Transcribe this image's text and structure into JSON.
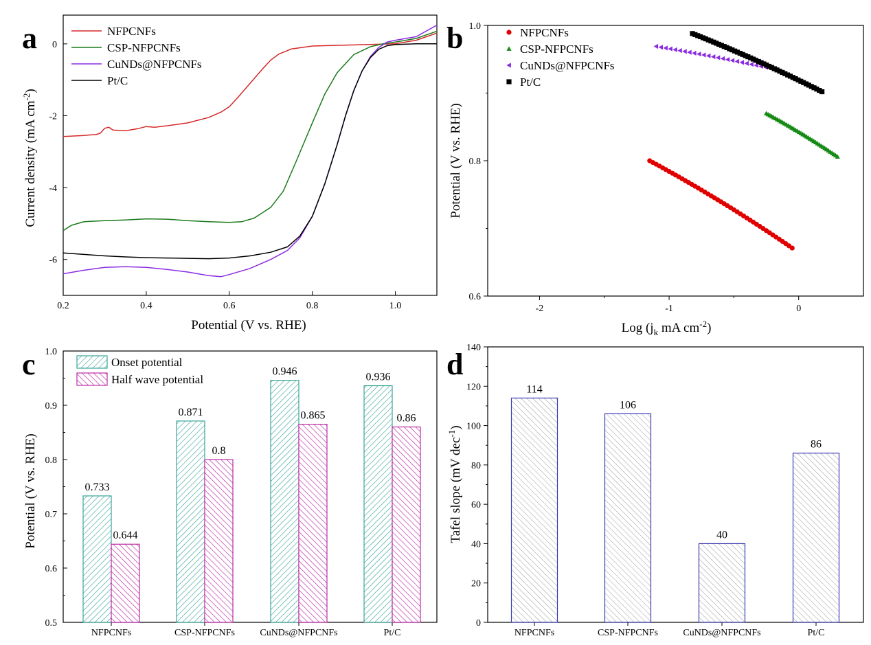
{
  "chart_data": [
    {
      "panel": "a",
      "type": "line",
      "xlabel": "Potential (V vs. RHE)",
      "ylabel_main": "Current density (mA cm",
      "ylabel_sup": "-2",
      "ylabel_end": ")",
      "xlim": [
        0.2,
        1.1
      ],
      "ylim": [
        -7,
        0.8
      ],
      "xticks": [
        0.2,
        0.4,
        0.6,
        0.8,
        1.0
      ],
      "xtick_labels": [
        "0.2",
        "0.4",
        "0.6",
        "0.8",
        "1.0"
      ],
      "yticks": [
        0,
        -2,
        -4,
        -6
      ],
      "ytick_labels": [
        "0",
        "-2",
        "-4",
        "-6"
      ],
      "legend": [
        "NFPCNFs",
        "CSP-NFPCNFs",
        "CuNDs@NFPCNFs",
        "Pt/C"
      ],
      "series": [
        {
          "name": "NFPCNFs",
          "color": "#d62728",
          "x": [
            0.2,
            0.25,
            0.28,
            0.29,
            0.3,
            0.31,
            0.32,
            0.35,
            0.38,
            0.4,
            0.42,
            0.45,
            0.5,
            0.55,
            0.58,
            0.6,
            0.62,
            0.65,
            0.68,
            0.7,
            0.72,
            0.75,
            0.8,
            0.9,
            1.0,
            1.05,
            1.1
          ],
          "y": [
            -2.58,
            -2.55,
            -2.52,
            -2.48,
            -2.35,
            -2.32,
            -2.4,
            -2.42,
            -2.36,
            -2.3,
            -2.32,
            -2.28,
            -2.2,
            -2.05,
            -1.9,
            -1.75,
            -1.5,
            -1.1,
            -0.7,
            -0.45,
            -0.28,
            -0.14,
            -0.06,
            -0.03,
            0.0,
            0.1,
            0.3
          ]
        },
        {
          "name": "CSP-NFPCNFs",
          "color": "#1a7a1a",
          "x": [
            0.2,
            0.22,
            0.25,
            0.3,
            0.35,
            0.4,
            0.45,
            0.5,
            0.55,
            0.6,
            0.63,
            0.66,
            0.7,
            0.73,
            0.76,
            0.8,
            0.83,
            0.86,
            0.9,
            0.94,
            0.97,
            1.0,
            1.05,
            1.1
          ],
          "y": [
            -5.2,
            -5.05,
            -4.95,
            -4.92,
            -4.9,
            -4.87,
            -4.88,
            -4.92,
            -4.95,
            -4.97,
            -4.95,
            -4.85,
            -4.55,
            -4.1,
            -3.3,
            -2.2,
            -1.4,
            -0.8,
            -0.3,
            -0.08,
            0.0,
            0.05,
            0.15,
            0.35
          ]
        },
        {
          "name": "CuNDs@NFPCNFs",
          "color": "#8a2be2",
          "x": [
            0.2,
            0.25,
            0.3,
            0.35,
            0.4,
            0.45,
            0.5,
            0.55,
            0.58,
            0.6,
            0.65,
            0.7,
            0.74,
            0.77,
            0.8,
            0.83,
            0.86,
            0.88,
            0.9,
            0.92,
            0.94,
            0.96,
            0.98,
            1.0,
            1.05,
            1.1
          ],
          "y": [
            -6.4,
            -6.3,
            -6.22,
            -6.2,
            -6.22,
            -6.28,
            -6.35,
            -6.45,
            -6.48,
            -6.42,
            -6.25,
            -6.0,
            -5.75,
            -5.4,
            -4.8,
            -3.9,
            -2.8,
            -2.0,
            -1.3,
            -0.75,
            -0.35,
            -0.1,
            0.05,
            0.1,
            0.2,
            0.52
          ]
        },
        {
          "name": "Pt/C",
          "color": "#000000",
          "x": [
            0.2,
            0.25,
            0.3,
            0.35,
            0.4,
            0.45,
            0.5,
            0.55,
            0.6,
            0.65,
            0.7,
            0.74,
            0.77,
            0.8,
            0.83,
            0.86,
            0.88,
            0.9,
            0.92,
            0.94,
            0.96,
            0.98,
            1.0,
            1.05,
            1.1
          ],
          "y": [
            -5.82,
            -5.86,
            -5.9,
            -5.93,
            -5.95,
            -5.96,
            -5.97,
            -5.98,
            -5.96,
            -5.9,
            -5.8,
            -5.65,
            -5.35,
            -4.8,
            -3.9,
            -2.8,
            -2.0,
            -1.3,
            -0.75,
            -0.38,
            -0.15,
            -0.05,
            -0.02,
            0.0,
            0.0
          ]
        }
      ]
    },
    {
      "panel": "b",
      "type": "scatter",
      "xlabel_main": "Log (j",
      "xlabel_sub": "k",
      "xlabel_mid": " mA cm",
      "xlabel_sup": "-2",
      "xlabel_end": ")",
      "ylabel": "Potential (V vs. RHE)",
      "xlim": [
        -2.4,
        0.5
      ],
      "ylim": [
        0.6,
        1.0
      ],
      "xticks": [
        -2,
        -1,
        0
      ],
      "xtick_labels": [
        "-2",
        "-1",
        "0"
      ],
      "yticks": [
        0.6,
        0.8,
        1.0
      ],
      "ytick_labels": [
        "0.6",
        "0.8",
        "1.0"
      ],
      "legend": [
        "NFPCNFs",
        "CSP-NFPCNFs",
        "CuNDs@NFPCNFs",
        "Pt/C"
      ],
      "series": [
        {
          "name": "NFPCNFs",
          "color": "#e00000",
          "marker": "circle",
          "x_start": -1.15,
          "x_end": -0.05,
          "y_start": 0.8,
          "y_end": 0.671,
          "n": 45
        },
        {
          "name": "CSP-NFPCNFs",
          "color": "#158a15",
          "marker": "triangle-up",
          "x_start": -0.25,
          "x_end": 0.3,
          "y_start": 0.87,
          "y_end": 0.806,
          "n": 40
        },
        {
          "name": "CuNDs@NFPCNFs",
          "color": "#8a2be2",
          "marker": "triangle-left",
          "x_start": -1.1,
          "x_end": -0.18,
          "y_start": 0.969,
          "y_end": 0.935,
          "n": 26
        },
        {
          "name": "Pt/C",
          "color": "#000000",
          "marker": "square",
          "x_start": -0.82,
          "x_end": 0.18,
          "y_start": 0.988,
          "y_end": 0.902,
          "n": 50
        }
      ]
    },
    {
      "panel": "c",
      "type": "bar",
      "ylabel": "Potential (V vs. RHE)",
      "ylim": [
        0.5,
        1.0
      ],
      "yticks": [
        0.5,
        0.6,
        0.7,
        0.8,
        0.9,
        1.0
      ],
      "ytick_labels": [
        "0.5",
        "0.6",
        "0.7",
        "0.8",
        "0.9",
        "1.0"
      ],
      "categories": [
        "NFPCNFs",
        "CSP-NFPCNFs",
        "CuNDs@NFPCNFs",
        "Pt/C"
      ],
      "series": [
        {
          "name": "Onset potential",
          "color": "#2a9d8f",
          "values": [
            0.733,
            0.871,
            0.946,
            0.936
          ],
          "labels": [
            "0.733",
            "0.871",
            "0.946",
            "0.936"
          ]
        },
        {
          "name": "Half wave potential",
          "color": "#b5179e",
          "values": [
            0.644,
            0.8,
            0.865,
            0.86
          ],
          "labels": [
            "0.644",
            "0.8",
            "0.865",
            "0.86"
          ]
        }
      ]
    },
    {
      "panel": "d",
      "type": "bar",
      "ylabel_main": "Tafel slope (mV dec",
      "ylabel_sup": "-1",
      "ylabel_end": ")",
      "ylim": [
        0,
        140
      ],
      "yticks": [
        0,
        20,
        40,
        60,
        80,
        100,
        120,
        140
      ],
      "ytick_labels": [
        "0",
        "20",
        "40",
        "60",
        "80",
        "100",
        "120",
        "140"
      ],
      "categories": [
        "NFPCNFs",
        "CSP-NFPCNFs",
        "CuNDs@NFPCNFs",
        "Pt/C"
      ],
      "values": [
        114,
        106,
        40,
        86
      ],
      "labels": [
        "114",
        "106",
        "40",
        "86"
      ],
      "bar_color": "#3a3ab0"
    }
  ],
  "panel_labels": [
    "a",
    "b",
    "c",
    "d"
  ]
}
